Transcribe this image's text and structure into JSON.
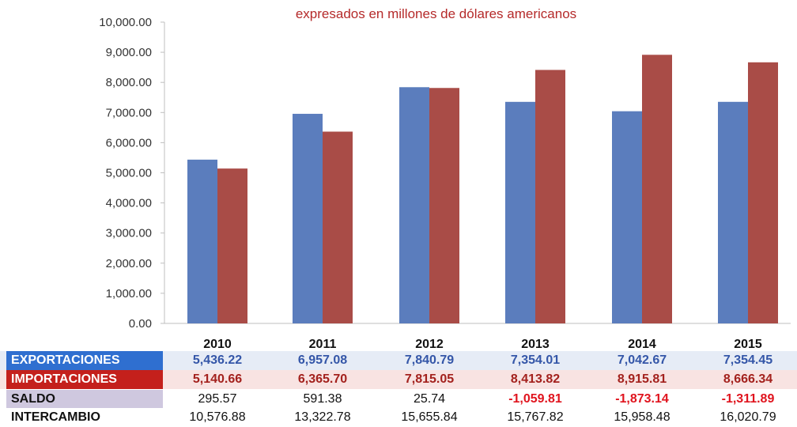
{
  "subtitle": "expresados en millones de dólares americanos",
  "colors": {
    "exportaciones": "#5b7dbd",
    "importaciones": "#a94c47",
    "negative": "#e0141e",
    "saldo_bg": "#cfc8df",
    "export_row_bg": "#e6ecf6",
    "import_row_bg": "#f8e3e2"
  },
  "chart_data": {
    "type": "bar",
    "categories": [
      "2010",
      "2011",
      "2012",
      "2013",
      "2014",
      "2015"
    ],
    "series": [
      {
        "name": "EXPORTACIONES",
        "values": [
          5436.22,
          6957.08,
          7840.79,
          7354.01,
          7042.67,
          7354.45
        ]
      },
      {
        "name": "IMPORTACIONES",
        "values": [
          5140.66,
          6365.7,
          7815.05,
          8413.82,
          8915.81,
          8666.34
        ]
      }
    ],
    "title": "",
    "subtitle": "expresados en millones de dólares americanos",
    "ylim": [
      0,
      10000
    ],
    "yticks": [
      "0.00",
      "1,000.00",
      "2,000.00",
      "3,000.00",
      "4,000.00",
      "5,000.00",
      "6,000.00",
      "7,000.00",
      "8,000.00",
      "9,000.00",
      "10,000.00"
    ],
    "grid": false,
    "legend": "table below"
  },
  "table": {
    "years": [
      "2010",
      "2011",
      "2012",
      "2013",
      "2014",
      "2015"
    ],
    "rows": [
      {
        "label": "EXPORTACIONES",
        "values": [
          "5,436.22",
          "6,957.08",
          "7,840.79",
          "7,354.01",
          "7,042.67",
          "7,354.45"
        ]
      },
      {
        "label": "IMPORTACIONES",
        "values": [
          "5,140.66",
          "6,365.70",
          "7,815.05",
          "8,413.82",
          "8,915.81",
          "8,666.34"
        ]
      },
      {
        "label": "SALDO",
        "values": [
          "295.57",
          "591.38",
          "25.74",
          "-1,059.81",
          "-1,873.14",
          "-1,311.89"
        ]
      },
      {
        "label": "INTERCAMBIO",
        "values": [
          "10,576.88",
          "13,322.78",
          "15,655.84",
          "15,767.82",
          "15,958.48",
          "16,020.79"
        ]
      }
    ]
  }
}
